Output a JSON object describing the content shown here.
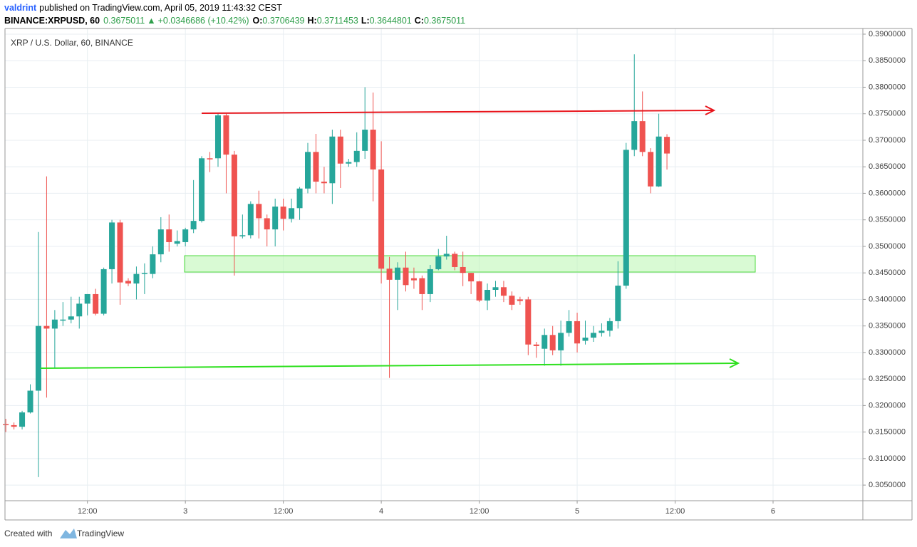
{
  "header": {
    "author": "valdrint",
    "published": "published on TradingView.com, April 05, 2019 11:43:32 CEST",
    "symbol": "BINANCE:XRPUSD, 60",
    "change": "+0.0346686 (+10.42%)",
    "open_label": "O:",
    "high_label": "H:",
    "low_label": "L:",
    "close_label": "C:"
  },
  "footer": {
    "created": "Created with",
    "brand": "TradingView"
  },
  "chart_data": {
    "type": "candlestick",
    "title": "XRP / U.S. Dollar, 60, BINANCE",
    "up_color": "#26a69a",
    "down_color": "#ef5350",
    "grid": true,
    "x": [
      -22,
      -21,
      -20,
      -19,
      -18,
      -17,
      -16,
      -15,
      -14,
      -13,
      -12,
      -11,
      -10,
      -9,
      -8,
      -7,
      -6,
      -5,
      -4,
      -3,
      -2,
      -1,
      0,
      1,
      2,
      3,
      4,
      5,
      6,
      7,
      8,
      9,
      10,
      11,
      12,
      13,
      14,
      15,
      16,
      17,
      18,
      19,
      20,
      21,
      22,
      23,
      24,
      25,
      26,
      27,
      28,
      29,
      30,
      31,
      32,
      33,
      34,
      35,
      36,
      37,
      38,
      39,
      40,
      41,
      42,
      43,
      44,
      45,
      46,
      47,
      48,
      49,
      50,
      51,
      52,
      53,
      54,
      55,
      56,
      57,
      58,
      59
    ],
    "open": [
      0.3165,
      0.3163,
      0.316,
      0.3187,
      0.3228,
      0.335,
      0.3345,
      0.336,
      0.3362,
      0.3368,
      0.3392,
      0.341,
      0.3373,
      0.3457,
      0.3545,
      0.3435,
      0.343,
      0.3448,
      0.3448,
      0.3485,
      0.3532,
      0.3505,
      0.3508,
      0.3532,
      0.3548,
      0.3666,
      0.3666,
      0.3747,
      0.3673,
      0.3519,
      0.3521,
      0.358,
      0.3553,
      0.3532,
      0.3575,
      0.3552,
      0.3572,
      0.3609,
      0.3678,
      0.3622,
      0.3619,
      0.3707,
      0.3656,
      0.3659,
      0.368,
      0.372,
      0.3645,
      0.3458,
      0.3437,
      0.346,
      0.344,
      0.344,
      0.341,
      0.3457,
      0.3481,
      0.3486,
      0.3461,
      0.345,
      0.3434,
      0.3398,
      0.3418,
      0.3423,
      0.3407,
      0.34,
      0.34,
      0.3315,
      0.3307,
      0.3333,
      0.3304,
      0.3337,
      0.3359,
      0.3322,
      0.3328,
      0.3337,
      0.3341,
      0.3359,
      0.3426,
      0.3682,
      0.3736,
      0.3678,
      0.3613,
      0.3706439
    ],
    "high": [
      0.3175,
      0.3168,
      0.319,
      0.324,
      0.3527,
      0.3632,
      0.338,
      0.3395,
      0.3405,
      0.3405,
      0.341,
      0.342,
      0.346,
      0.355,
      0.355,
      0.344,
      0.3462,
      0.3468,
      0.35,
      0.3555,
      0.356,
      0.353,
      0.3535,
      0.3625,
      0.367,
      0.3678,
      0.3752,
      0.375,
      0.368,
      0.356,
      0.3585,
      0.3605,
      0.356,
      0.359,
      0.359,
      0.359,
      0.3612,
      0.3695,
      0.3712,
      0.365,
      0.372,
      0.372,
      0.3665,
      0.3715,
      0.38,
      0.379,
      0.3698,
      0.348,
      0.347,
      0.349,
      0.346,
      0.3445,
      0.3465,
      0.3495,
      0.352,
      0.349,
      0.349,
      0.345,
      0.3435,
      0.343,
      0.3435,
      0.3435,
      0.3415,
      0.3405,
      0.3405,
      0.332,
      0.3345,
      0.335,
      0.336,
      0.338,
      0.3375,
      0.336,
      0.335,
      0.3355,
      0.3365,
      0.3472,
      0.3695,
      0.3862,
      0.3792,
      0.3685,
      0.375,
      0.3711453
    ],
    "low": [
      0.315,
      0.3155,
      0.3155,
      0.3185,
      0.3065,
      0.3215,
      0.327,
      0.335,
      0.3355,
      0.3345,
      0.337,
      0.337,
      0.337,
      0.343,
      0.339,
      0.3425,
      0.34,
      0.341,
      0.344,
      0.347,
      0.349,
      0.35,
      0.35,
      0.3525,
      0.3545,
      0.364,
      0.365,
      0.36,
      0.3445,
      0.3515,
      0.3515,
      0.3515,
      0.35,
      0.35,
      0.353,
      0.3545,
      0.355,
      0.36,
      0.36,
      0.36,
      0.358,
      0.361,
      0.365,
      0.365,
      0.3665,
      0.3585,
      0.343,
      0.3252,
      0.338,
      0.3415,
      0.342,
      0.338,
      0.3395,
      0.3455,
      0.3475,
      0.3455,
      0.3425,
      0.341,
      0.3395,
      0.338,
      0.3405,
      0.3395,
      0.338,
      0.339,
      0.3295,
      0.329,
      0.3275,
      0.3295,
      0.3275,
      0.333,
      0.33,
      0.3315,
      0.332,
      0.333,
      0.333,
      0.3345,
      0.342,
      0.367,
      0.367,
      0.36,
      0.3612,
      0.3644801
    ],
    "close": [
      0.3163,
      0.316,
      0.3187,
      0.3228,
      0.335,
      0.3345,
      0.3362,
      0.3362,
      0.3368,
      0.3392,
      0.341,
      0.3373,
      0.3457,
      0.3545,
      0.3432,
      0.343,
      0.3448,
      0.345,
      0.3485,
      0.3532,
      0.3508,
      0.351,
      0.3532,
      0.3548,
      0.3666,
      0.3664,
      0.3747,
      0.3673,
      0.3519,
      0.3521,
      0.358,
      0.3553,
      0.3532,
      0.3575,
      0.3552,
      0.3572,
      0.3609,
      0.3678,
      0.3622,
      0.3619,
      0.3707,
      0.3656,
      0.3659,
      0.368,
      0.372,
      0.3645,
      0.3458,
      0.3437,
      0.346,
      0.3427,
      0.3436,
      0.341,
      0.3457,
      0.3481,
      0.3486,
      0.3461,
      0.345,
      0.3434,
      0.3398,
      0.3418,
      0.3423,
      0.3407,
      0.339,
      0.3397,
      0.3315,
      0.3312,
      0.3333,
      0.3304,
      0.3337,
      0.3359,
      0.3317,
      0.3328,
      0.3337,
      0.3341,
      0.3359,
      0.3426,
      0.3682,
      0.3736,
      0.3678,
      0.3613,
      0.3707,
      0.3675011
    ],
    "xlim": [
      -22.1,
      83
    ],
    "xticks": [
      {
        "value": -12,
        "label": "12:00"
      },
      {
        "value": 0,
        "label": "3"
      },
      {
        "value": 12,
        "label": "12:00"
      },
      {
        "value": 24,
        "label": "4"
      },
      {
        "value": 36,
        "label": "12:00"
      },
      {
        "value": 48,
        "label": "5"
      },
      {
        "value": 60,
        "label": "12:00"
      },
      {
        "value": 72,
        "label": "6"
      }
    ],
    "ylim": [
      0.30206,
      0.39107
    ],
    "yticks": [
      {
        "value": 0.305,
        "label": "0.3050000"
      },
      {
        "value": 0.31,
        "label": "0.3100000"
      },
      {
        "value": 0.315,
        "label": "0.3150000"
      },
      {
        "value": 0.32,
        "label": "0.3200000"
      },
      {
        "value": 0.325,
        "label": "0.3250000"
      },
      {
        "value": 0.33,
        "label": "0.3300000"
      },
      {
        "value": 0.335,
        "label": "0.3350000"
      },
      {
        "value": 0.34,
        "label": "0.3400000"
      },
      {
        "value": 0.345,
        "label": "0.3450000"
      },
      {
        "value": 0.35,
        "label": "0.3500000"
      },
      {
        "value": 0.355,
        "label": "0.3550000"
      },
      {
        "value": 0.36,
        "label": "0.3600000"
      },
      {
        "value": 0.365,
        "label": "0.3650000"
      },
      {
        "value": 0.37,
        "label": "0.3700000"
      },
      {
        "value": 0.375,
        "label": "0.3750000"
      },
      {
        "value": 0.38,
        "label": "0.3800000"
      },
      {
        "value": 0.385,
        "label": "0.3850000"
      },
      {
        "value": 0.39,
        "label": "0.3900000"
      }
    ]
  }
}
